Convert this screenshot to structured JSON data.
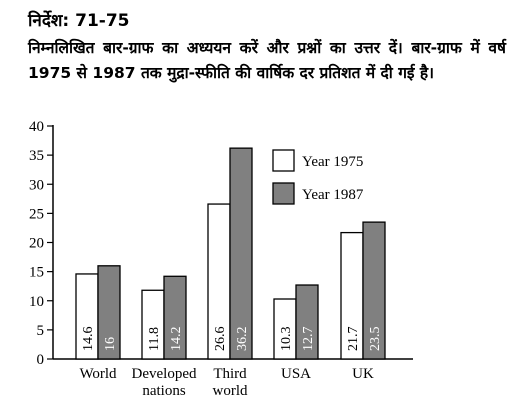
{
  "header": {
    "heading": "निर्देश: 71-75",
    "instructions": "निम्नलिखित बार-ग्राफ का अध्ययन करें और प्रश्नों का उत्तर दें। बार-ग्राफ में वर्ष 1975 से 1987 तक मुद्रा-स्फीति की वार्षिक दर प्रतिशत में दी गई है।"
  },
  "colors": {
    "series_1975": "#ffffff",
    "series_1987": "#808080",
    "axis": "#000000"
  },
  "chart_data": {
    "type": "bar",
    "categories": [
      "World",
      "Developed nations",
      "Third world",
      "USA",
      "UK"
    ],
    "category_lines": [
      [
        "World"
      ],
      [
        "Developed",
        "nations"
      ],
      [
        "Third",
        "world"
      ],
      [
        "USA"
      ],
      [
        "UK"
      ]
    ],
    "series": [
      {
        "name": "Year 1975",
        "values": [
          14.6,
          11.8,
          26.6,
          10.3,
          21.7
        ],
        "value_labels": [
          "14.6",
          "11.8",
          "26.6",
          "10.3",
          "21.7"
        ]
      },
      {
        "name": "Year 1987",
        "values": [
          16,
          14.2,
          36.2,
          12.7,
          23.5
        ],
        "value_labels": [
          "16",
          "14.2",
          "36.2",
          "12.7",
          "23.5"
        ]
      }
    ],
    "ylim": [
      0,
      40
    ],
    "yticks": [
      0,
      5,
      10,
      15,
      20,
      25,
      30,
      35,
      40
    ],
    "legend_position": "top-right",
    "grid": false
  }
}
